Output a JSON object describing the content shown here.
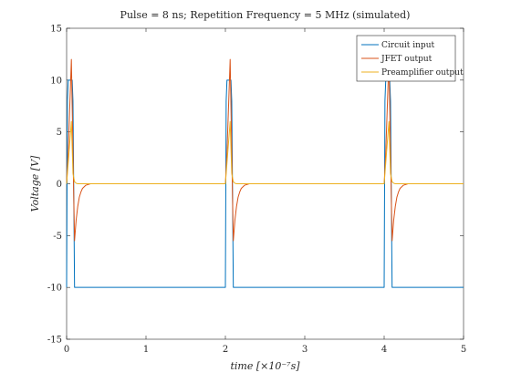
{
  "chart_data": {
    "type": "line",
    "title": "Pulse = 8 ns; Repetition Frequency = 5 MHz (simulated)",
    "xlabel": "time [×10⁻⁷s]",
    "ylabel": "Voltage [V]",
    "xlim": [
      0,
      5
    ],
    "ylim": [
      -15,
      15
    ],
    "xticks": [
      "0",
      "1",
      "2",
      "3",
      "4",
      "5"
    ],
    "yticks": [
      "-15",
      "-10",
      "-5",
      "0",
      "5",
      "10",
      "15"
    ],
    "grid": false,
    "legend_position": "top-right",
    "series": [
      {
        "name": "Circuit input",
        "color": "#0072BD",
        "x": [
          0,
          0.01,
          0.02,
          0.07,
          0.08,
          0.1,
          1.99,
          2.0,
          2.01,
          2.02,
          2.07,
          2.08,
          2.1,
          3.99,
          4.0,
          4.01,
          4.02,
          4.07,
          4.08,
          4.1,
          5.0
        ],
        "y": [
          -10,
          8,
          10,
          10,
          8,
          -10,
          -10,
          -10,
          8,
          10,
          10,
          8,
          -10,
          -10,
          -10,
          8,
          10,
          10,
          8,
          -10,
          -10
        ]
      },
      {
        "name": "JFET output",
        "color": "#D95319",
        "x": [
          0,
          0.02,
          0.06,
          0.08,
          0.1,
          0.12,
          0.14,
          0.16,
          0.18,
          0.2,
          0.24,
          0.3,
          2.0,
          2.02,
          2.06,
          2.08,
          2.1,
          2.12,
          2.14,
          2.16,
          2.18,
          2.2,
          2.24,
          2.3,
          4.0,
          4.02,
          4.06,
          4.08,
          4.1,
          4.12,
          4.14,
          4.16,
          4.18,
          4.2,
          4.24,
          4.3,
          5.0
        ],
        "y": [
          0,
          3,
          12,
          3,
          -5.5,
          -3.5,
          -2.2,
          -1.3,
          -0.8,
          -0.45,
          -0.15,
          0,
          0,
          3,
          12,
          3,
          -5.5,
          -3.5,
          -2.2,
          -1.3,
          -0.8,
          -0.45,
          -0.15,
          0,
          0,
          3,
          12,
          3,
          -5.5,
          -3.5,
          -2.2,
          -1.3,
          -0.8,
          -0.45,
          -0.15,
          0,
          0
        ]
      },
      {
        "name": "Preamplifier output",
        "color": "#EDB120",
        "x": [
          0,
          0.02,
          0.06,
          0.08,
          0.1,
          0.12,
          0.14,
          2.0,
          2.02,
          2.06,
          2.08,
          2.1,
          2.12,
          2.14,
          4.0,
          4.02,
          4.06,
          4.08,
          4.1,
          4.12,
          4.14,
          5.0
        ],
        "y": [
          0,
          2,
          6,
          1,
          0.2,
          0.05,
          0,
          0,
          2,
          6,
          1,
          0.2,
          0.05,
          0,
          0,
          2,
          6,
          1,
          0.2,
          0.05,
          0,
          0
        ]
      }
    ]
  }
}
